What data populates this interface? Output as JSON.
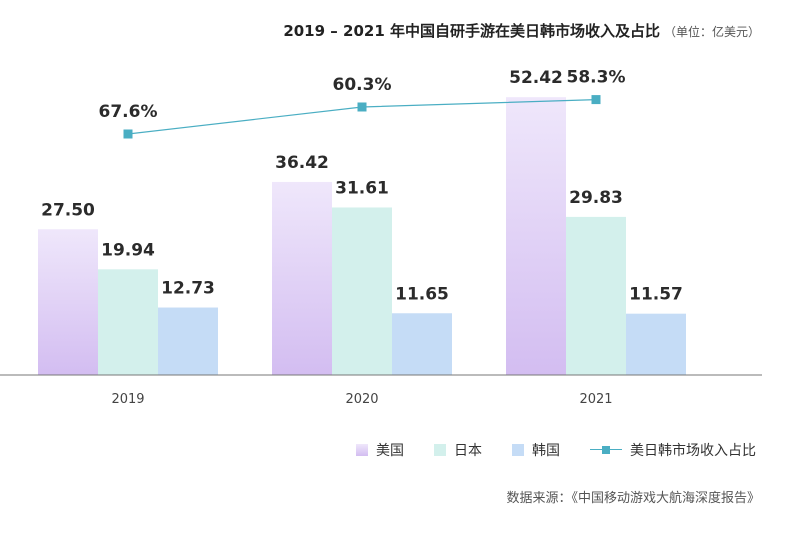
{
  "title": "2019 – 2021 年中国自研手游在美日韩市场收入及占比",
  "unit": "（单位：亿美元）",
  "source": "数据来源：《中国移动游戏大航海深度报告》",
  "colors": {
    "us_top": "#efe7fb",
    "us_bottom": "#d3bdf1",
    "jp": "#d3f0ec",
    "kr": "#c5dcf6",
    "line": "#4aaec3",
    "axis": "#777777"
  },
  "chart_data": {
    "type": "bar",
    "categories": [
      "2019",
      "2020",
      "2021"
    ],
    "series": [
      {
        "name": "美国",
        "values": [
          27.5,
          36.42,
          52.42
        ],
        "labels": [
          "27.50",
          "36.42",
          "52.42"
        ]
      },
      {
        "name": "日本",
        "values": [
          19.94,
          31.61,
          29.83
        ],
        "labels": [
          "19.94",
          "31.61",
          "29.83"
        ]
      },
      {
        "name": "韩国",
        "values": [
          12.73,
          11.65,
          11.57
        ],
        "labels": [
          "12.73",
          "11.65",
          "11.57"
        ]
      }
    ],
    "line_series": {
      "name": "美日韩市场收入占比",
      "values": [
        67.6,
        60.3,
        58.3
      ],
      "labels": [
        "67.6%",
        "60.3%",
        "58.3%"
      ]
    },
    "legend": [
      "美国",
      "日本",
      "韩国",
      "美日韩市场收入占比"
    ]
  }
}
